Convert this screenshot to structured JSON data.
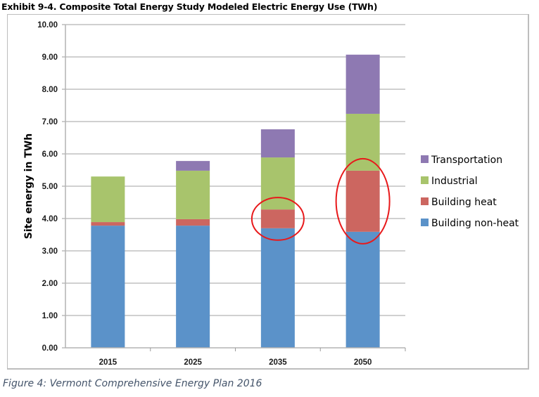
{
  "exhibit_title": "Exhibit 9-4. Composite Total Energy Study Modeled Electric Energy Use (TWh)",
  "caption": "Figure 4: Vermont Comprehensive Energy Plan 2016",
  "chart_data": {
    "type": "bar",
    "stacked": true,
    "title": "Exhibit 9-4. Composite Total Energy Study Modeled Electric Energy Use (TWh)",
    "xlabel": "",
    "ylabel": "Site energy in TWh",
    "ylim": [
      0,
      10
    ],
    "yticks": [
      "0.00",
      "1.00",
      "2.00",
      "3.00",
      "4.00",
      "5.00",
      "6.00",
      "7.00",
      "8.00",
      "9.00",
      "10.00"
    ],
    "grid": true,
    "legend_position": "right",
    "categories": [
      "2015",
      "2025",
      "2035",
      "2050"
    ],
    "series": [
      {
        "name": "Building non-heat",
        "color": "#5b92c9",
        "values": [
          3.78,
          3.78,
          3.7,
          3.59
        ]
      },
      {
        "name": "Building heat",
        "color": "#cc6660",
        "values": [
          0.11,
          0.2,
          0.58,
          1.89
        ]
      },
      {
        "name": "Industrial",
        "color": "#a8c46c",
        "values": [
          1.41,
          1.5,
          1.61,
          1.76
        ]
      },
      {
        "name": "Transportation",
        "color": "#8e79b2",
        "values": [
          0.0,
          0.3,
          0.87,
          1.83
        ]
      }
    ],
    "legend_order": [
      "Transportation",
      "Industrial",
      "Building heat",
      "Building non-heat"
    ],
    "annotations": [
      {
        "type": "ellipse",
        "color": "#e8191b",
        "target": "2035 Building heat"
      },
      {
        "type": "ellipse",
        "color": "#e8191b",
        "target": "2050 Building heat"
      }
    ]
  }
}
